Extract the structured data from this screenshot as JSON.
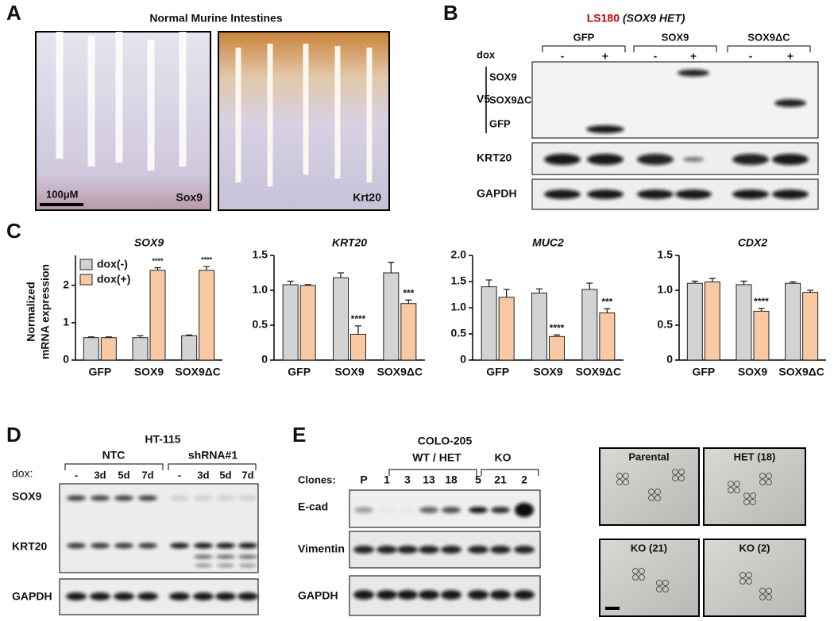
{
  "panels": {
    "A": {
      "letter": "A",
      "title": "Normal Murine Intestines",
      "image_labels": [
        "Sox9",
        "Krt20"
      ],
      "scale_bar": "100μM"
    },
    "B": {
      "letter": "B",
      "title_cell": "LS180",
      "title_genotype": "(SOX9 HET)",
      "groups": [
        "GFP",
        "SOX9",
        "SOX9ΔC"
      ],
      "dox_label": "dox",
      "dox_states": [
        "-",
        "+",
        "-",
        "+",
        "-",
        "+"
      ],
      "v5_label": "V5",
      "v5_bands": [
        "SOX9",
        "SOX9ΔC",
        "GFP"
      ],
      "rows": [
        "KRT20",
        "GAPDH"
      ]
    },
    "C": {
      "letter": "C"
    },
    "D": {
      "letter": "D",
      "title": "HT-115",
      "groups": [
        "NTC",
        "shRNA#1"
      ],
      "dox_label": "dox:",
      "lanes": [
        "-",
        "3d",
        "5d",
        "7d",
        "-",
        "3d",
        "5d",
        "7d"
      ],
      "rows": [
        "SOX9",
        "KRT20",
        "GAPDH"
      ]
    },
    "E": {
      "letter": "E",
      "title": "COLO-205",
      "groups": [
        "WT / HET",
        "KO"
      ],
      "clones_label": "Clones:",
      "clones": [
        "P",
        "1",
        "3",
        "13",
        "18",
        "5",
        "21",
        "2"
      ],
      "rows": [
        "E-cad",
        "Vimentin",
        "GAPDH"
      ],
      "image_labels": [
        "Parental",
        "HET (18)",
        "KO (21)",
        "KO (2)"
      ]
    }
  },
  "chart_data": [
    {
      "type": "bar",
      "title": "SOX9",
      "y_label": [
        "Normalized",
        "mRNA expression"
      ],
      "legend": "upper left",
      "categories": [
        "GFP",
        "SOX9",
        "SOX9ΔC"
      ],
      "ylim": [
        0,
        2.8
      ],
      "yticks": [
        0,
        1,
        2
      ],
      "series": [
        {
          "name": "dox(-)",
          "color": "#d3d3d3",
          "values": [
            0.6,
            0.6,
            0.65
          ],
          "errors": [
            0.02,
            0.05,
            0.02
          ]
        },
        {
          "name": "dox(+)",
          "color": "#f9c9a3",
          "values": [
            0.6,
            2.4,
            2.4
          ],
          "errors": [
            0.02,
            0.07,
            0.1
          ],
          "annotations": [
            null,
            "****",
            "****"
          ]
        }
      ]
    },
    {
      "type": "bar",
      "title": "KRT20",
      "categories": [
        "GFP",
        "SOX9",
        "SOX9ΔC"
      ],
      "ylim": [
        0,
        1.5
      ],
      "yticks": [
        0,
        0.5,
        {
          "value": 1,
          "label": "1.0"
        },
        1.5
      ],
      "series": [
        {
          "color": "#d3d3d3",
          "values": [
            1.08,
            1.18,
            1.25
          ],
          "errors": [
            0.05,
            0.07,
            0.15
          ]
        },
        {
          "color": "#f9c9a3",
          "values": [
            1.07,
            0.37,
            0.81
          ],
          "errors": [
            0.01,
            0.12,
            0.05
          ],
          "annotations": [
            null,
            "****",
            "***"
          ]
        }
      ]
    },
    {
      "type": "bar",
      "title": "MUC2",
      "categories": [
        "GFP",
        "SOX9",
        "SOX9ΔC"
      ],
      "ylim": [
        0,
        2
      ],
      "yticks": [
        0,
        0.5,
        {
          "value": 1,
          "label": "1.0"
        },
        1.5,
        {
          "value": 2,
          "label": "2.0"
        }
      ],
      "series": [
        {
          "color": "#d3d3d3",
          "values": [
            1.4,
            1.28,
            1.35
          ],
          "errors": [
            0.13,
            0.08,
            0.12
          ]
        },
        {
          "color": "#f9c9a3",
          "values": [
            1.2,
            0.45,
            0.9
          ],
          "errors": [
            0.15,
            0.03,
            0.08
          ],
          "annotations": [
            null,
            "****",
            "***"
          ]
        }
      ]
    },
    {
      "type": "bar",
      "title": "CDX2",
      "categories": [
        "GFP",
        "SOX9",
        "SOX9ΔC"
      ],
      "ylim": [
        0,
        1.5
      ],
      "yticks": [
        0,
        0.5,
        {
          "value": 1,
          "label": "1.0"
        },
        1.5
      ],
      "series": [
        {
          "color": "#d3d3d3",
          "values": [
            1.1,
            1.08,
            1.1
          ],
          "errors": [
            0.03,
            0.05,
            0.02
          ]
        },
        {
          "color": "#f9c9a3",
          "values": [
            1.12,
            0.7,
            0.97
          ],
          "errors": [
            0.05,
            0.04,
            0.03
          ],
          "annotations": [
            null,
            "****",
            null
          ]
        }
      ]
    }
  ]
}
